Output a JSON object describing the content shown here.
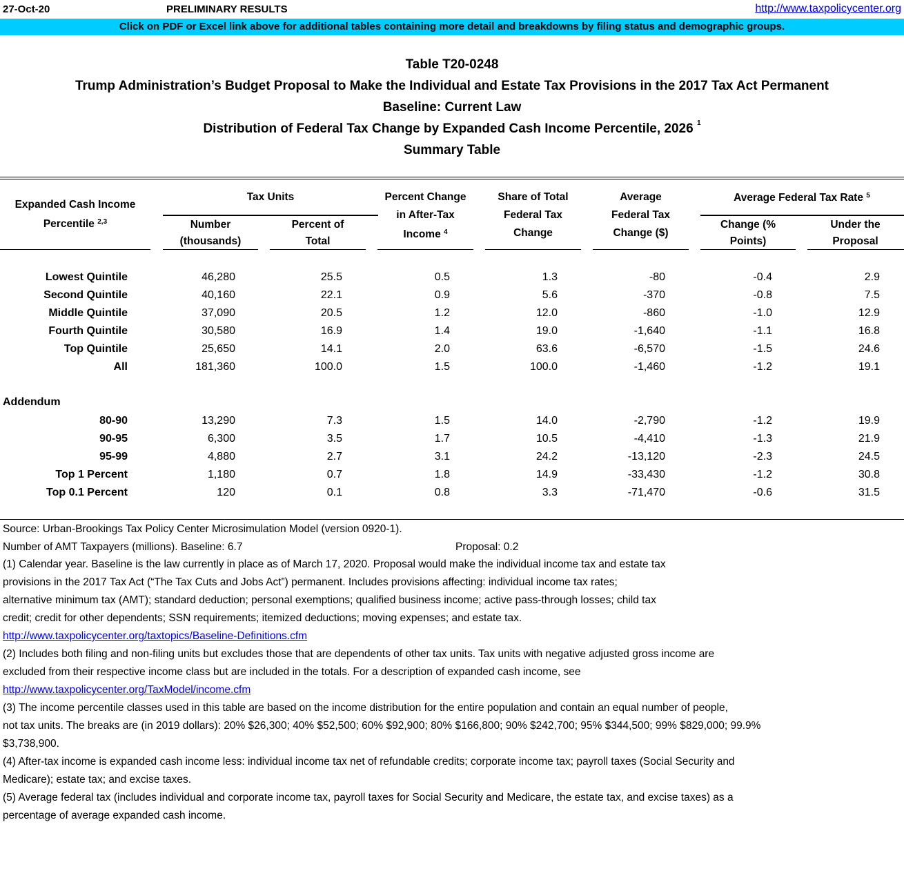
{
  "topbar": {
    "date": "27-Oct-20",
    "status": "PRELIMINARY RESULTS",
    "link": "http://www.taxpolicycenter.org"
  },
  "banner": "Click on PDF or Excel link above for additional tables containing more detail and breakdowns by filing status and demographic groups.",
  "titles": {
    "table_id": "Table T20-0248",
    "title": "Trump Administration’s Budget Proposal to Make the Individual and Estate Tax Provisions in the 2017 Tax Act Permanent",
    "baseline": "Baseline: Current Law",
    "distribution": "Distribution of Federal Tax Change by Expanded Cash Income Percentile, 2026",
    "distribution_note": "1",
    "summary": "Summary Table"
  },
  "headers": {
    "percentile": "Expanded Cash Income",
    "percentile2": "Percentile",
    "percentile_note": "2,3",
    "tax_units": "Tax Units",
    "number": "Number",
    "number2": "(thousands)",
    "percent_total": "Percent of",
    "percent_total2": "Total",
    "pct_change": "Percent Change",
    "pct_change2": "in After-Tax",
    "pct_change3": "Income",
    "pct_change_note": "4",
    "share": "Share of Total",
    "share2": "Federal Tax",
    "share3": "Change",
    "avg": "Average",
    "avg2": "Federal Tax",
    "avg3": "Change ($)",
    "rate": "Average Federal Tax Rate",
    "rate_note": "5",
    "rate_change": "Change (%",
    "rate_change2": "Points)",
    "rate_under": "Under the",
    "rate_under2": "Proposal"
  },
  "rows": [
    [
      "Lowest Quintile",
      "46,280",
      "25.5",
      "0.5",
      "1.3",
      "-80",
      "-0.4",
      "2.9"
    ],
    [
      "Second Quintile",
      "40,160",
      "22.1",
      "0.9",
      "5.6",
      "-370",
      "-0.8",
      "7.5"
    ],
    [
      "Middle Quintile",
      "37,090",
      "20.5",
      "1.2",
      "12.0",
      "-860",
      "-1.0",
      "12.9"
    ],
    [
      "Fourth Quintile",
      "30,580",
      "16.9",
      "1.4",
      "19.0",
      "-1,640",
      "-1.1",
      "16.8"
    ],
    [
      "Top Quintile",
      "25,650",
      "14.1",
      "2.0",
      "63.6",
      "-6,570",
      "-1.5",
      "24.6"
    ],
    [
      "All",
      "181,360",
      "100.0",
      "1.5",
      "100.0",
      "-1,460",
      "-1.2",
      "19.1"
    ]
  ],
  "addendum_label": "Addendum",
  "addendum_rows": [
    [
      "80-90",
      "13,290",
      "7.3",
      "1.5",
      "14.0",
      "-2,790",
      "-1.2",
      "19.9"
    ],
    [
      "90-95",
      "6,300",
      "3.5",
      "1.7",
      "10.5",
      "-4,410",
      "-1.3",
      "21.9"
    ],
    [
      "95-99",
      "4,880",
      "2.7",
      "3.1",
      "24.2",
      "-13,120",
      "-2.3",
      "24.5"
    ],
    [
      "Top 1 Percent",
      "1,180",
      "0.7",
      "1.8",
      "14.9",
      "-33,430",
      "-1.2",
      "30.8"
    ],
    [
      "Top 0.1 Percent",
      "120",
      "0.1",
      "0.8",
      "3.3",
      "-71,470",
      "-0.6",
      "31.5"
    ]
  ],
  "footnotes": {
    "source": "Source: Urban-Brookings Tax Policy Center Microsimulation Model (version 0920-1).",
    "amt": "Number of AMT Taxpayers (millions).  Baseline: 6.7",
    "amt_proposal": "Proposal: 0.2",
    "lines": [
      {
        "text": "(1) Calendar year. Baseline is the law currently in place as of March 17, 2020. Proposal would make the individual income tax and estate tax",
        "link": false
      },
      {
        "text": "provisions in the 2017 Tax Act (“The Tax Cuts and Jobs Act”) permanent. Includes provisions affecting: individual income tax rates;",
        "link": false
      },
      {
        "text": "alternative minimum tax (AMT); standard deduction; personal exemptions; qualified business income; active pass-through losses; child tax",
        "link": false
      },
      {
        "text": "credit; credit for other dependents; SSN requirements; itemized deductions; moving expenses; and estate tax.",
        "link": false
      },
      {
        "text": "http://www.taxpolicycenter.org/taxtopics/Baseline-Definitions.cfm",
        "link": true
      },
      {
        "text": "(2) Includes both filing and non-filing units but excludes those that are dependents of other tax units. Tax units with negative adjusted gross income are",
        "link": false
      },
      {
        "text": "excluded from their respective income class but are included in the totals. For a description of expanded cash income, see",
        "link": false
      },
      {
        "text": "http://www.taxpolicycenter.org/TaxModel/income.cfm",
        "link": true
      },
      {
        "text": "(3) The income percentile classes used in this table are based on the income distribution for the entire population and contain an equal number of people,",
        "link": false
      },
      {
        "text": "not tax units. The breaks are (in 2019 dollars): 20% $26,300; 40% $52,500; 60% $92,900; 80% $166,800; 90% $242,700; 95% $344,500; 99% $829,000; 99.9%",
        "link": false
      },
      {
        "text": "$3,738,900.",
        "link": false
      },
      {
        "text": "(4) After-tax income is expanded cash income less: individual income tax net of refundable credits; corporate income tax; payroll taxes (Social Security and",
        "link": false
      },
      {
        "text": "Medicare); estate tax; and excise taxes.",
        "link": false
      },
      {
        "text": "(5) Average federal tax (includes individual and corporate income tax, payroll taxes for Social Security and Medicare, the estate tax, and excise taxes) as a",
        "link": false
      },
      {
        "text": "percentage of average expanded cash income.",
        "link": false
      }
    ]
  },
  "colors": {
    "banner": "#00ccff",
    "link": "#0000ee"
  }
}
